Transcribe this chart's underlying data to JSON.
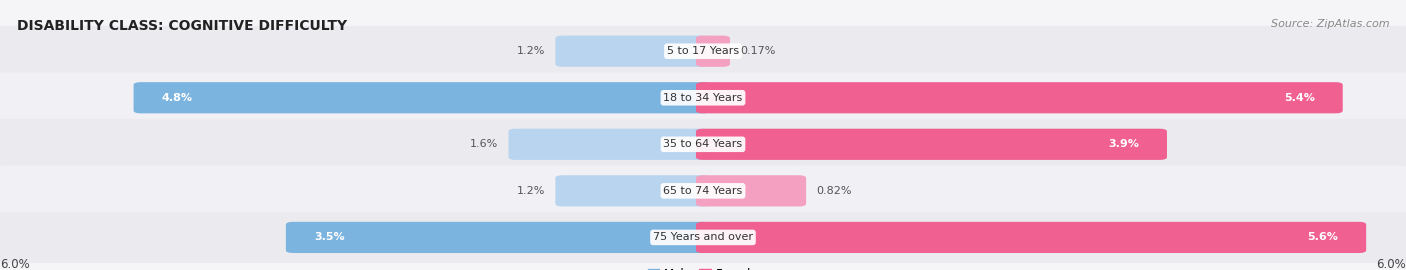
{
  "title": "DISABILITY CLASS: COGNITIVE DIFFICULTY",
  "source": "Source: ZipAtlas.com",
  "categories": [
    "5 to 17 Years",
    "18 to 34 Years",
    "35 to 64 Years",
    "65 to 74 Years",
    "75 Years and over"
  ],
  "male_values": [
    1.2,
    4.8,
    1.6,
    1.2,
    3.5
  ],
  "female_values": [
    0.17,
    5.4,
    3.9,
    0.82,
    5.6
  ],
  "max_val": 6.0,
  "male_color": "#7cb4e0",
  "female_color": "#f06090",
  "male_color_light": "#b8d4ee",
  "female_color_light": "#f4a0c0",
  "row_bg_colors": [
    "#eaeaef",
    "#f0f0f5",
    "#eaeaef",
    "#f0f0f5",
    "#eaeaef"
  ],
  "fig_bg_color": "#f5f5f8",
  "label_axis": "6.0%",
  "title_fontsize": 10,
  "source_fontsize": 8,
  "bar_label_fontsize": 8,
  "cat_label_fontsize": 8
}
